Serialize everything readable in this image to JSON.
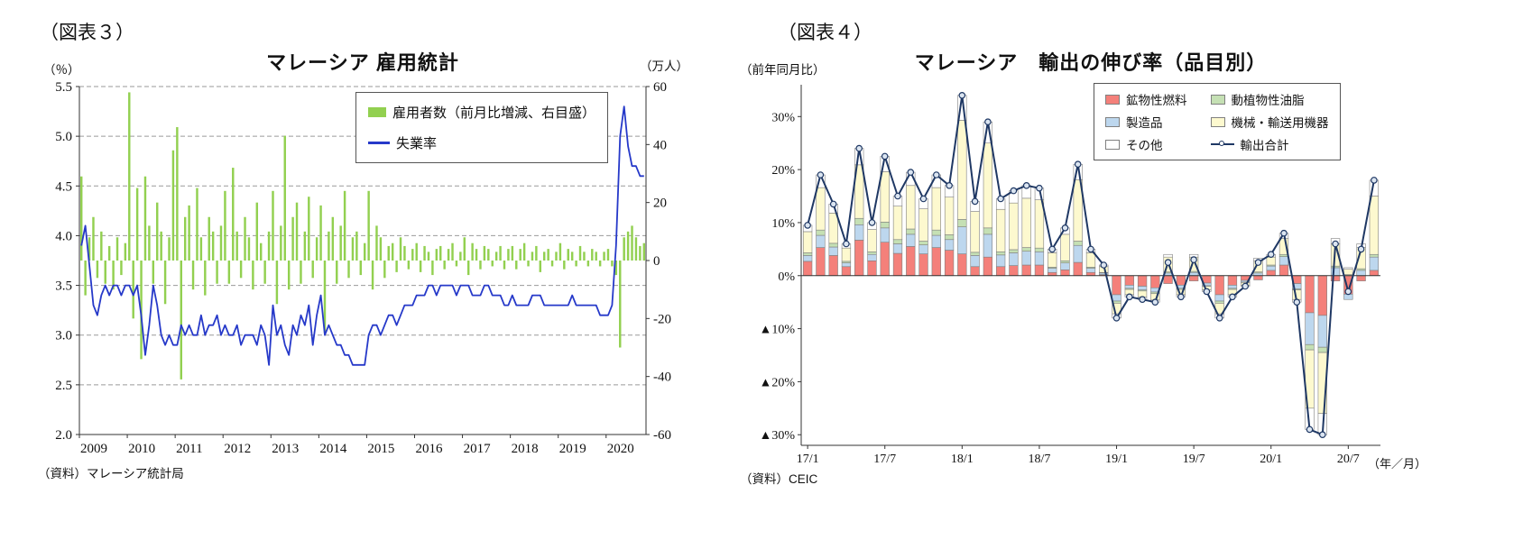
{
  "left_panel": {
    "figure_label": "（図表３）",
    "title": "マレーシア 雇用統計",
    "left_axis_unit": "（％）",
    "right_axis_unit": "（万人）",
    "source": "（資料）マレーシア統計局"
  },
  "right_panel": {
    "figure_label": "（図表４）",
    "title": "マレーシア　輸出の伸び率（品目別）",
    "y_axis_unit": "（前年同月比）",
    "x_axis_unit": "（年／月）",
    "source": "（資料）CEIC"
  },
  "chart_data": [
    {
      "type": "bar+line",
      "title": "マレーシア 雇用統計",
      "x_start": "2009-01",
      "x_frequency": "monthly",
      "x_tick_labels": [
        "2009",
        "2010",
        "2011",
        "2012",
        "2013",
        "2014",
        "2015",
        "2016",
        "2017",
        "2018",
        "2019",
        "2020"
      ],
      "x_tick_positions": [
        0,
        12,
        24,
        36,
        48,
        60,
        72,
        84,
        96,
        108,
        120,
        132
      ],
      "grid": "dashed-horizontal",
      "legend_position": "top-right",
      "left_axis": {
        "unit": "（％）",
        "min": 2.0,
        "max": 5.5,
        "tick_values": [
          5.5,
          5.0,
          4.5,
          4.0,
          3.5,
          3.0,
          2.5,
          2.0
        ],
        "tick_labels": [
          "5.5",
          "5.0",
          "4.5",
          "4.0",
          "3.5",
          "3.0",
          "2.5",
          "2.0"
        ]
      },
      "right_axis": {
        "unit": "（万人）",
        "min": -60,
        "max": 60,
        "tick_values": [
          60,
          40,
          20,
          0,
          -20,
          -40,
          -60
        ],
        "tick_labels": [
          "60",
          "40",
          "20",
          "0",
          "-20",
          "-40",
          "-60"
        ]
      },
      "series": [
        {
          "name": "雇用者数（前月比増減、右目盛）",
          "type": "bar",
          "axis": "right",
          "color": "#92d050",
          "values": [
            29,
            -12,
            8,
            15,
            -6,
            10,
            -8,
            5,
            -10,
            8,
            -5,
            6,
            58,
            -20,
            25,
            -34,
            29,
            12,
            -8,
            20,
            10,
            -15,
            8,
            38,
            46,
            -41,
            15,
            19,
            -10,
            25,
            8,
            -12,
            15,
            10,
            -8,
            12,
            24,
            -8,
            32,
            10,
            -6,
            15,
            8,
            -10,
            20,
            6,
            -8,
            10,
            24,
            -15,
            12,
            43,
            -10,
            15,
            20,
            -8,
            10,
            22,
            -6,
            8,
            19,
            -25,
            10,
            15,
            -8,
            12,
            24,
            -6,
            8,
            10,
            -5,
            6,
            24,
            -10,
            12,
            8,
            -6,
            5,
            6,
            -4,
            8,
            5,
            -3,
            4,
            6,
            -4,
            5,
            3,
            -5,
            4,
            5,
            -3,
            4,
            6,
            -2,
            3,
            8,
            -5,
            6,
            4,
            -3,
            5,
            4,
            -2,
            3,
            5,
            -3,
            4,
            5,
            -3,
            4,
            6,
            -2,
            3,
            5,
            -4,
            3,
            4,
            -2,
            3,
            6,
            -3,
            4,
            3,
            -2,
            5,
            3,
            -2,
            4,
            3,
            -2,
            3,
            4,
            -2,
            -5,
            -30,
            8,
            10,
            12,
            8,
            5,
            6
          ]
        },
        {
          "name": "失業率",
          "type": "line",
          "axis": "left",
          "color": "#2639c9",
          "values": [
            3.9,
            4.1,
            3.7,
            3.3,
            3.2,
            3.4,
            3.5,
            3.4,
            3.5,
            3.5,
            3.4,
            3.5,
            3.5,
            3.4,
            3.5,
            3.2,
            2.8,
            3.1,
            3.5,
            3.3,
            3.0,
            2.9,
            3.0,
            2.9,
            2.9,
            3.1,
            3.0,
            3.1,
            3.0,
            3.0,
            3.2,
            3.0,
            3.1,
            3.1,
            3.2,
            3.0,
            3.1,
            3.0,
            3.0,
            3.1,
            2.9,
            3.0,
            3.0,
            3.0,
            2.9,
            3.1,
            3.0,
            2.7,
            3.3,
            3.0,
            3.1,
            2.9,
            2.8,
            3.1,
            3.0,
            3.2,
            3.1,
            3.3,
            2.9,
            3.2,
            3.4,
            3.0,
            3.1,
            3.0,
            2.9,
            2.9,
            2.8,
            2.8,
            2.7,
            2.7,
            2.7,
            2.7,
            3.0,
            3.1,
            3.1,
            3.0,
            3.1,
            3.2,
            3.2,
            3.1,
            3.2,
            3.3,
            3.3,
            3.3,
            3.4,
            3.4,
            3.4,
            3.5,
            3.5,
            3.4,
            3.5,
            3.5,
            3.5,
            3.5,
            3.4,
            3.5,
            3.5,
            3.5,
            3.4,
            3.4,
            3.4,
            3.5,
            3.5,
            3.4,
            3.4,
            3.4,
            3.3,
            3.3,
            3.4,
            3.3,
            3.3,
            3.3,
            3.3,
            3.4,
            3.4,
            3.4,
            3.3,
            3.3,
            3.3,
            3.3,
            3.3,
            3.3,
            3.3,
            3.4,
            3.3,
            3.3,
            3.3,
            3.3,
            3.3,
            3.3,
            3.2,
            3.2,
            3.2,
            3.3,
            3.9,
            5.0,
            5.3,
            4.9,
            4.7,
            4.7,
            4.6,
            4.6
          ]
        }
      ],
      "source": "（資料）マレーシア統計局"
    },
    {
      "type": "stacked-bar+line",
      "title": "マレーシア　輸出の伸び率（品目別）",
      "x_start": "2017-01",
      "x_frequency": "monthly",
      "x_tick_labels": [
        "17/1",
        "17/7",
        "18/1",
        "18/7",
        "19/1",
        "19/7",
        "20/1",
        "20/7"
      ],
      "x_tick_positions": [
        0,
        6,
        12,
        18,
        24,
        30,
        36,
        42
      ],
      "legend_position": "top-right",
      "y_axis": {
        "unit": "（前年同月比）",
        "min": -32,
        "max": 36,
        "tick_values": [
          30,
          20,
          10,
          0,
          -10,
          -20,
          -30
        ],
        "tick_labels": [
          "30%",
          "20%",
          "10%",
          "0%",
          "▲10%",
          "▲20%",
          "▲30%"
        ]
      },
      "bar_series": [
        {
          "name": "鉱物性燃料",
          "color": "#f4807a",
          "values": [
            2.7,
            5.3,
            3.8,
            1.7,
            6.7,
            2.8,
            6.3,
            4.2,
            5.5,
            4.1,
            5.3,
            4.8,
            4.1,
            1.7,
            3.5,
            1.7,
            1.9,
            2.0,
            2.0,
            0.6,
            1.1,
            2.5,
            0.6,
            0.2,
            -3.6,
            -1.8,
            -2.0,
            -2.3,
            -1.5,
            -1.8,
            -1.0,
            -1.4,
            -3.6,
            -1.8,
            -0.9,
            -0.8,
            1.0,
            2.0,
            -1.5,
            -7.0,
            -7.5,
            -1.0,
            -3.5,
            -1.0,
            1.0
          ]
        },
        {
          "name": "製造品",
          "color": "#bdd7ee",
          "values": [
            1.1,
            2.3,
            1.6,
            0.7,
            2.9,
            1.2,
            2.7,
            1.8,
            2.3,
            1.7,
            2.3,
            2.0,
            5.1,
            2.1,
            4.3,
            2.2,
            2.4,
            2.6,
            2.5,
            0.8,
            1.3,
            3.2,
            0.8,
            0.3,
            -1.2,
            -0.6,
            -0.7,
            -0.8,
            0.5,
            -0.6,
            0.6,
            -0.5,
            -1.2,
            -0.6,
            -0.3,
            0.5,
            0.8,
            1.6,
            -1.0,
            -6.0,
            -6.0,
            1.5,
            -1.0,
            1.0,
            2.5
          ]
        },
        {
          "name": "動植物性油脂",
          "color": "#c5e0b4",
          "values": [
            0.5,
            1.0,
            0.7,
            0.3,
            1.2,
            0.5,
            1.1,
            0.8,
            1.0,
            0.7,
            1.0,
            0.9,
            1.4,
            0.6,
            1.2,
            0.6,
            0.6,
            0.7,
            0.7,
            0.2,
            0.4,
            0.8,
            0.2,
            0.1,
            -0.4,
            -0.2,
            -0.2,
            -0.3,
            0.2,
            -0.2,
            0.2,
            -0.1,
            -0.4,
            -0.2,
            -0.1,
            0.2,
            0.2,
            0.4,
            -0.2,
            -1.0,
            -1.0,
            0.3,
            0.2,
            0.3,
            0.5
          ]
        },
        {
          "name": "機械・輸送用機器",
          "color": "#fdf9cf",
          "values": [
            4.0,
            8.0,
            5.7,
            2.5,
            10.1,
            4.2,
            9.5,
            6.3,
            8.2,
            6.1,
            8.0,
            7.1,
            18.7,
            7.7,
            16.0,
            8.0,
            8.8,
            9.3,
            9.1,
            2.7,
            5.0,
            11.6,
            2.7,
            1.1,
            -2.0,
            -1.0,
            -1.1,
            -1.2,
            2.8,
            -1.0,
            2.7,
            -0.7,
            -2.0,
            -1.0,
            -0.5,
            2.1,
            1.5,
            3.0,
            -1.8,
            -11.0,
            -11.5,
            4.2,
            1.0,
            4.0,
            11.0
          ]
        },
        {
          "name": "その他",
          "color": "#ffffff",
          "values": [
            1.2,
            2.4,
            1.7,
            0.8,
            3.1,
            1.3,
            2.9,
            1.9,
            2.5,
            1.9,
            2.4,
            2.2,
            4.7,
            1.9,
            4.0,
            2.0,
            2.3,
            2.4,
            2.2,
            0.7,
            1.2,
            2.9,
            0.7,
            0.3,
            -0.8,
            -0.4,
            -0.5,
            -0.4,
            0.5,
            -0.4,
            0.5,
            -0.3,
            -0.8,
            -0.4,
            -0.2,
            0.5,
            0.5,
            1.0,
            -0.5,
            -4.0,
            -4.0,
            1.0,
            0.3,
            0.7,
            3.0
          ]
        }
      ],
      "line_series": {
        "name": "輸出合計",
        "color": "#1f3864",
        "marker_fill": "#dbe5f1",
        "values": [
          9.5,
          19.0,
          13.5,
          6.0,
          24.0,
          10.0,
          22.5,
          15.0,
          19.5,
          14.5,
          19.0,
          17.0,
          34.0,
          14.0,
          29.0,
          14.5,
          16.0,
          17.0,
          16.5,
          5.0,
          9.0,
          21.0,
          5.0,
          2.0,
          -8.0,
          -4.0,
          -4.5,
          -5.0,
          2.5,
          -4.0,
          3.0,
          -3.0,
          -8.0,
          -4.0,
          -2.0,
          2.5,
          4.0,
          8.0,
          -5.0,
          -29.0,
          -30.0,
          6.0,
          -3.0,
          5.0,
          18.0
        ]
      },
      "source": "（資料）CEIC"
    }
  ]
}
